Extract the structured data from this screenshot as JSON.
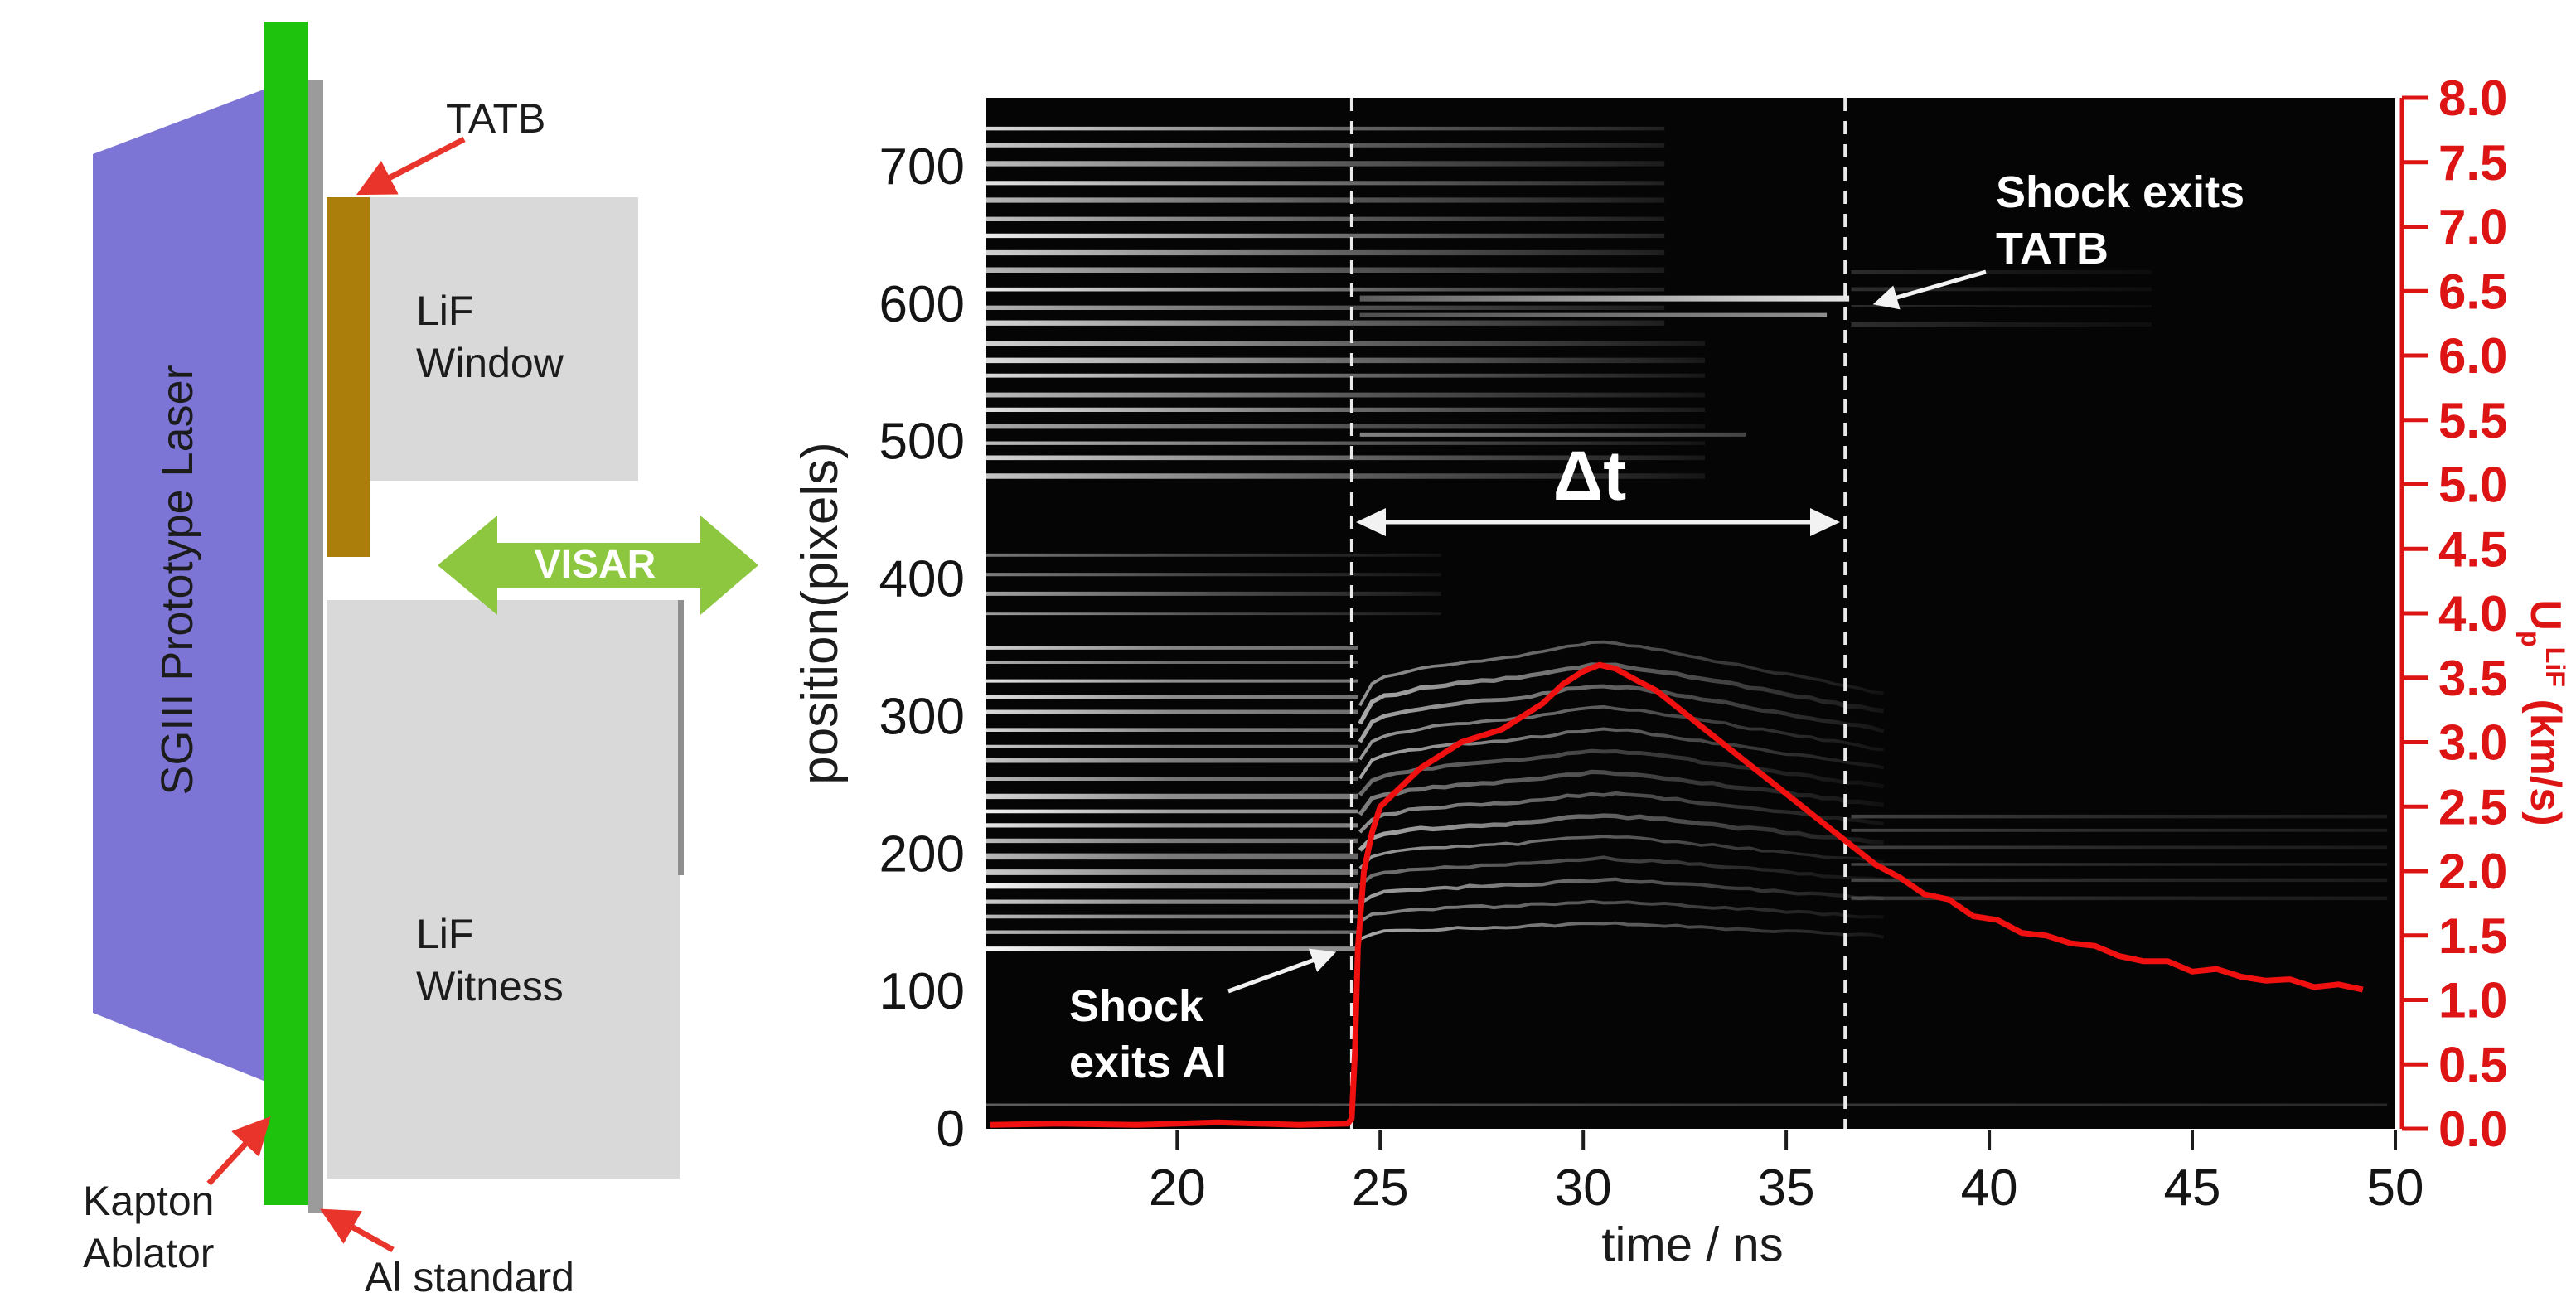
{
  "diagram": {
    "laser_label": "SGIII Prototype Laser",
    "visar_label": "VISAR",
    "tatb_label": "TATB",
    "lif_window_label": [
      "LiF",
      "Window"
    ],
    "lif_witness_label": [
      "LiF",
      "Witness"
    ],
    "kapton_label": [
      "Kapton",
      "Ablator"
    ],
    "al_label": "Al standard",
    "colors": {
      "laser": "#7c75d6",
      "kapton": "#1ec30e",
      "al_strip": "#9b9b9b",
      "tatb": "#ab7e0b",
      "lif": "#d9d9d9",
      "visar_arrow": "#8dc63f",
      "arrow_red": "#e8342a"
    }
  },
  "chart_data": {
    "type": "line",
    "description": "VISAR streak record of shock transit through TATB with overlaid LiF-window particle velocity trace",
    "xlabel": "time / ns",
    "ylabel_left": "position(pixels)",
    "ylabel_right": {
      "base": "U",
      "sub": "p",
      "sup": "LiF",
      "units": " (km/s)"
    },
    "xlim": [
      15.3,
      50
    ],
    "x_ticks": [
      20,
      25,
      30,
      35,
      40,
      45,
      50
    ],
    "ylim_left": [
      0,
      750
    ],
    "y_ticks_left": [
      0,
      100,
      200,
      300,
      400,
      500,
      600,
      700
    ],
    "ylim_right": [
      0,
      8
    ],
    "y_ticks_right": [
      "8.0",
      "7.5",
      "7.0",
      "6.5",
      "6.0",
      "5.5",
      "5.0",
      "4.5",
      "4.0",
      "3.5",
      "3.0",
      "2.5",
      "2.0",
      "1.5",
      "1.0",
      "0.5",
      "0.0"
    ],
    "axis_right_color": "#dd1414",
    "curve_color": "#f01010",
    "dt_label": "Δt",
    "events": [
      {
        "label": [
          "Shock",
          "exits Al"
        ],
        "time": 24.3
      },
      {
        "label": [
          "Shock exits",
          "TATB"
        ],
        "time": 36.45
      }
    ],
    "series": [
      {
        "name": "Up_LiF (km/s)",
        "x": [
          15.4,
          17.0,
          19.0,
          21.0,
          23.0,
          24.2,
          24.3,
          24.38,
          24.45,
          24.6,
          24.8,
          25.0,
          25.5,
          26.0,
          26.5,
          27.0,
          27.5,
          28.0,
          28.5,
          29.0,
          29.5,
          30.0,
          30.4,
          30.8,
          31.2,
          31.8,
          32.4,
          33.0,
          33.6,
          34.2,
          34.8,
          35.4,
          36.0,
          36.6,
          37.2,
          37.8,
          38.4,
          39.0,
          39.6,
          40.2,
          40.8,
          41.4,
          42.0,
          42.6,
          43.2,
          43.8,
          44.4,
          45.0,
          45.6,
          46.2,
          46.8,
          47.4,
          48.0,
          48.6,
          49.2
        ],
        "y": [
          0.03,
          0.04,
          0.03,
          0.05,
          0.03,
          0.04,
          0.08,
          0.6,
          1.4,
          2.0,
          2.3,
          2.5,
          2.65,
          2.8,
          2.9,
          3.0,
          3.05,
          3.1,
          3.2,
          3.3,
          3.45,
          3.55,
          3.6,
          3.57,
          3.5,
          3.4,
          3.25,
          3.1,
          2.95,
          2.8,
          2.65,
          2.5,
          2.35,
          2.2,
          2.05,
          1.95,
          1.82,
          1.78,
          1.65,
          1.62,
          1.52,
          1.5,
          1.44,
          1.42,
          1.34,
          1.3,
          1.3,
          1.22,
          1.24,
          1.18,
          1.15,
          1.16,
          1.1,
          1.12,
          1.08
        ]
      }
    ],
    "fringe_bands": [
      {
        "p0": 585,
        "p1": 730,
        "t0": 15.3,
        "t1": 32.0,
        "spacing": 13,
        "width": 5,
        "o0": 0.95,
        "o1": 0.12
      },
      {
        "p0": 475,
        "p1": 572,
        "t0": 15.3,
        "t1": 33.0,
        "spacing": 12,
        "width": 5,
        "o0": 0.9,
        "o1": 0.08
      },
      {
        "p0": 375,
        "p1": 420,
        "t0": 15.3,
        "t1": 26.5,
        "spacing": 14,
        "width": 4,
        "o0": 0.65,
        "o1": 0.08
      },
      {
        "p0": 255,
        "p1": 352,
        "t0": 15.3,
        "t1": 24.45,
        "spacing": 12,
        "width": 5,
        "o0": 0.9,
        "o1": 0.45
      },
      {
        "p0": 132,
        "p1": 252,
        "t0": 15.3,
        "t1": 24.45,
        "spacing": 11,
        "width": 6,
        "o0": 1.0,
        "o1": 0.55
      },
      {
        "p0": 18,
        "p1": 26,
        "t0": 15.3,
        "t1": 49.8,
        "spacing": 10,
        "width": 3,
        "o0": 0.5,
        "o1": 0.2
      },
      {
        "p0": 168,
        "p1": 235,
        "t0": 36.6,
        "t1": 49.8,
        "spacing": 12,
        "width": 4,
        "o0": 0.28,
        "o1": 0.1
      },
      {
        "p0": 585,
        "p1": 628,
        "t0": 36.6,
        "t1": 44.0,
        "spacing": 13,
        "width": 4,
        "o0": 0.18,
        "o1": 0.04
      }
    ],
    "feature_lines": [
      {
        "p": 604,
        "t0": 24.5,
        "t1": 36.55,
        "width": 7,
        "o0": 0.35,
        "o1": 0.9
      },
      {
        "p": 592,
        "t0": 24.5,
        "t1": 36.0,
        "width": 5,
        "o0": 0.3,
        "o1": 0.55
      },
      {
        "p": 505,
        "t0": 24.5,
        "t1": 34.0,
        "width": 5,
        "o0": 0.5,
        "o1": 0.25
      }
    ],
    "shock_fringes": {
      "count": 14,
      "base_start": 128,
      "base_step": 11,
      "k_start": 6,
      "k_step": 1.3,
      "t0": 24.5,
      "t1": 37.6
    }
  }
}
